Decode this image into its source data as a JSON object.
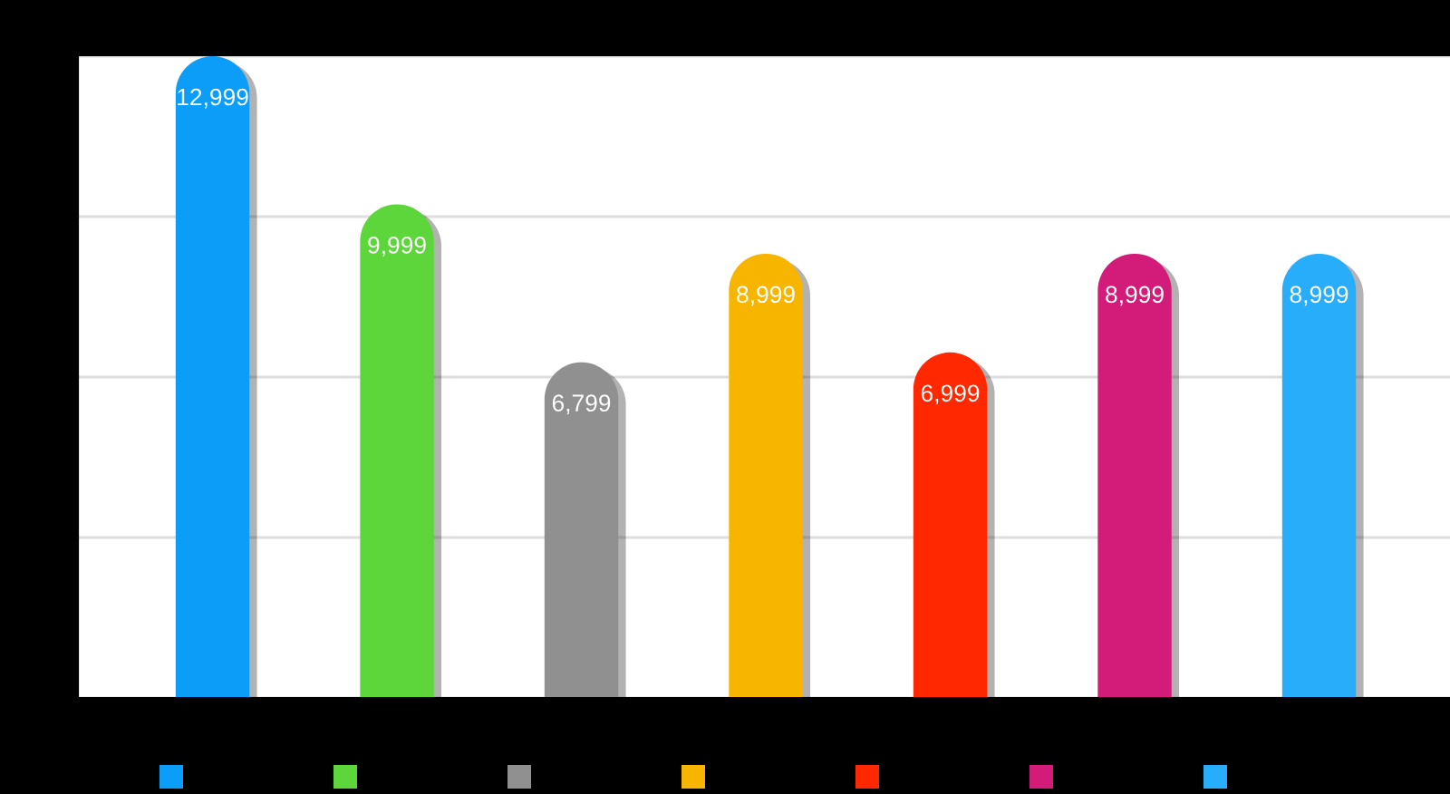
{
  "chart_data": {
    "type": "bar",
    "categories": [
      null,
      null,
      null,
      null,
      null,
      null,
      null
    ],
    "values": [
      12999,
      9999,
      6799,
      8999,
      6999,
      8999,
      8999
    ],
    "colors": [
      "#0b9df7",
      "#5cd63a",
      "#909090",
      "#f7b500",
      "#ff2800",
      "#d31c79",
      "#28adfa"
    ],
    "value_labels": [
      "12,999",
      "9,999",
      "6,799",
      "8,999",
      "6,999",
      "8,999",
      "8,999"
    ],
    "ylim": [
      0,
      13000
    ],
    "yticks": [
      {
        "value": 0,
        "label": null
      },
      {
        "value": 3250,
        "label": null
      },
      {
        "value": 6500,
        "label": null
      },
      {
        "value": 9750,
        "label": null
      },
      {
        "value": 13000,
        "label": null
      }
    ],
    "grid": "y"
  }
}
